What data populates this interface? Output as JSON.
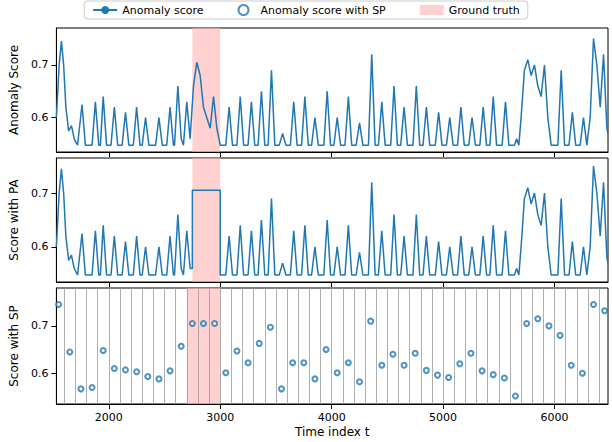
{
  "chart_data": [
    {
      "type": "line",
      "ylabel": "Anomaly Score",
      "legend": "top",
      "grid": false,
      "tick_labels": "y",
      "xlim": [
        1530,
        6480
      ],
      "xticks": [
        2000,
        3000,
        4000,
        5000,
        6000
      ],
      "ylim": [
        0.535,
        0.77
      ],
      "yticks": [
        0.6,
        0.7
      ],
      "series": [
        {
          "name": "Anomaly score",
          "color": "#1f77b4",
          "line_style": "solid",
          "x": [
            1530,
            1555,
            1575,
            1595,
            1615,
            1640,
            1665,
            1690,
            1720,
            1760,
            1790,
            1850,
            1880,
            1910,
            1925,
            1950,
            1980,
            2020,
            2050,
            2080,
            2120,
            2150,
            2180,
            2220,
            2250,
            2280,
            2300,
            2330,
            2360,
            2420,
            2450,
            2480,
            2520,
            2550,
            2580,
            2590,
            2620,
            2650,
            2670,
            2700,
            2730,
            2760,
            2790,
            2820,
            2850,
            2880,
            2910,
            2940,
            2970,
            3000,
            3050,
            3080,
            3110,
            3150,
            3180,
            3210,
            3250,
            3280,
            3310,
            3340,
            3370,
            3400,
            3430,
            3460,
            3490,
            3530,
            3560,
            3590,
            3630,
            3660,
            3690,
            3730,
            3760,
            3790,
            3820,
            3850,
            3880,
            3930,
            3960,
            3990,
            4020,
            4050,
            4080,
            4120,
            4150,
            4180,
            4220,
            4250,
            4280,
            4330,
            4360,
            4390,
            4420,
            4450,
            4480,
            4530,
            4560,
            4590,
            4620,
            4650,
            4680,
            4730,
            4760,
            4790,
            4820,
            4850,
            4880,
            4930,
            4960,
            4990,
            5030,
            5060,
            5090,
            5130,
            5160,
            5190,
            5230,
            5260,
            5290,
            5330,
            5360,
            5390,
            5420,
            5450,
            5480,
            5530,
            5560,
            5590,
            5640,
            5660,
            5680,
            5700,
            5730,
            5760,
            5790,
            5820,
            5850,
            5880,
            5910,
            5940,
            5970,
            6030,
            6060,
            6090,
            6130,
            6160,
            6190,
            6230,
            6260,
            6290,
            6320,
            6350,
            6380,
            6410,
            6440,
            6470,
            6480
          ],
          "values": [
            0.6,
            0.7,
            0.745,
            0.7,
            0.62,
            0.575,
            0.585,
            0.56,
            0.548,
            0.625,
            0.548,
            0.548,
            0.63,
            0.548,
            0.548,
            0.64,
            0.548,
            0.548,
            0.62,
            0.548,
            0.548,
            0.61,
            0.548,
            0.548,
            0.62,
            0.548,
            0.548,
            0.6,
            0.548,
            0.548,
            0.6,
            0.548,
            0.548,
            0.62,
            0.548,
            0.548,
            0.66,
            0.56,
            0.548,
            0.63,
            0.56,
            0.66,
            0.705,
            0.68,
            0.62,
            0.6,
            0.58,
            0.64,
            0.58,
            0.548,
            0.548,
            0.62,
            0.548,
            0.548,
            0.64,
            0.548,
            0.548,
            0.63,
            0.548,
            0.548,
            0.65,
            0.548,
            0.548,
            0.69,
            0.548,
            0.548,
            0.57,
            0.548,
            0.548,
            0.63,
            0.548,
            0.548,
            0.64,
            0.548,
            0.548,
            0.6,
            0.548,
            0.548,
            0.65,
            0.548,
            0.548,
            0.6,
            0.548,
            0.548,
            0.64,
            0.548,
            0.548,
            0.59,
            0.548,
            0.548,
            0.72,
            0.548,
            0.548,
            0.63,
            0.548,
            0.548,
            0.66,
            0.548,
            0.548,
            0.62,
            0.548,
            0.548,
            0.66,
            0.548,
            0.548,
            0.62,
            0.548,
            0.548,
            0.61,
            0.548,
            0.548,
            0.6,
            0.548,
            0.548,
            0.62,
            0.548,
            0.548,
            0.6,
            0.548,
            0.548,
            0.62,
            0.548,
            0.548,
            0.64,
            0.548,
            0.548,
            0.63,
            0.548,
            0.548,
            0.56,
            0.548,
            0.6,
            0.69,
            0.71,
            0.68,
            0.7,
            0.66,
            0.64,
            0.7,
            0.6,
            0.548,
            0.548,
            0.69,
            0.548,
            0.548,
            0.61,
            0.548,
            0.548,
            0.6,
            0.548,
            0.6,
            0.75,
            0.7,
            0.62,
            0.72,
            0.58,
            0.57
          ]
        },
        {
          "name": "Ground truth",
          "type": "span",
          "color": "#ffb0b0",
          "x": [
            2750,
            3000
          ]
        }
      ]
    },
    {
      "type": "line",
      "ylabel": "Score with PA",
      "grid": false,
      "tick_labels": "y",
      "xlim": [
        1530,
        6480
      ],
      "xticks": [
        2000,
        3000,
        4000,
        5000,
        6000
      ],
      "ylim": [
        0.535,
        0.765
      ],
      "yticks": [
        0.6,
        0.7
      ],
      "series": [
        {
          "name": "Anomaly score",
          "color": "#1f77b4",
          "line_style": "solid",
          "x": [
            1530,
            1555,
            1575,
            1595,
            1615,
            1640,
            1665,
            1690,
            1720,
            1760,
            1790,
            1850,
            1880,
            1910,
            1925,
            1950,
            1980,
            2020,
            2050,
            2080,
            2120,
            2150,
            2180,
            2220,
            2250,
            2280,
            2300,
            2330,
            2360,
            2420,
            2450,
            2480,
            2520,
            2550,
            2580,
            2590,
            2620,
            2650,
            2670,
            2700,
            2730,
            2750,
            2750,
            3000,
            3000,
            3050,
            3080,
            3110,
            3150,
            3180,
            3210,
            3250,
            3280,
            3310,
            3340,
            3370,
            3400,
            3430,
            3460,
            3490,
            3530,
            3560,
            3590,
            3630,
            3660,
            3690,
            3730,
            3760,
            3790,
            3820,
            3850,
            3880,
            3930,
            3960,
            3990,
            4020,
            4050,
            4080,
            4120,
            4150,
            4180,
            4220,
            4250,
            4280,
            4330,
            4360,
            4390,
            4420,
            4450,
            4480,
            4530,
            4560,
            4590,
            4620,
            4650,
            4680,
            4730,
            4760,
            4790,
            4820,
            4850,
            4880,
            4930,
            4960,
            4990,
            5030,
            5060,
            5090,
            5130,
            5160,
            5190,
            5230,
            5260,
            5290,
            5330,
            5360,
            5390,
            5420,
            5450,
            5480,
            5530,
            5560,
            5590,
            5640,
            5660,
            5680,
            5700,
            5730,
            5760,
            5790,
            5820,
            5850,
            5880,
            5910,
            5940,
            5970,
            6030,
            6060,
            6090,
            6130,
            6160,
            6190,
            6230,
            6260,
            6290,
            6320,
            6350,
            6380,
            6410,
            6440,
            6470,
            6480
          ],
          "values": [
            0.6,
            0.7,
            0.745,
            0.7,
            0.62,
            0.575,
            0.585,
            0.56,
            0.548,
            0.625,
            0.548,
            0.548,
            0.63,
            0.548,
            0.548,
            0.64,
            0.548,
            0.548,
            0.62,
            0.548,
            0.548,
            0.61,
            0.548,
            0.548,
            0.62,
            0.548,
            0.548,
            0.6,
            0.548,
            0.548,
            0.6,
            0.548,
            0.548,
            0.62,
            0.548,
            0.548,
            0.66,
            0.56,
            0.548,
            0.63,
            0.56,
            0.56,
            0.705,
            0.705,
            0.548,
            0.548,
            0.62,
            0.548,
            0.548,
            0.64,
            0.548,
            0.548,
            0.63,
            0.548,
            0.548,
            0.65,
            0.548,
            0.548,
            0.69,
            0.548,
            0.548,
            0.57,
            0.548,
            0.548,
            0.63,
            0.548,
            0.548,
            0.64,
            0.548,
            0.548,
            0.6,
            0.548,
            0.548,
            0.65,
            0.548,
            0.548,
            0.6,
            0.548,
            0.548,
            0.64,
            0.548,
            0.548,
            0.59,
            0.548,
            0.548,
            0.72,
            0.548,
            0.548,
            0.63,
            0.548,
            0.548,
            0.66,
            0.548,
            0.548,
            0.62,
            0.548,
            0.548,
            0.66,
            0.548,
            0.548,
            0.62,
            0.548,
            0.548,
            0.61,
            0.548,
            0.548,
            0.6,
            0.548,
            0.548,
            0.62,
            0.548,
            0.548,
            0.6,
            0.548,
            0.548,
            0.62,
            0.548,
            0.548,
            0.64,
            0.548,
            0.548,
            0.63,
            0.548,
            0.548,
            0.56,
            0.548,
            0.6,
            0.69,
            0.71,
            0.68,
            0.7,
            0.66,
            0.64,
            0.7,
            0.6,
            0.548,
            0.548,
            0.69,
            0.548,
            0.548,
            0.61,
            0.548,
            0.548,
            0.6,
            0.548,
            0.6,
            0.75,
            0.7,
            0.62,
            0.72,
            0.58,
            0.57
          ]
        },
        {
          "name": "Ground truth",
          "type": "span",
          "color": "#ffb0b0",
          "x": [
            2750,
            3000
          ]
        }
      ]
    },
    {
      "type": "scatter",
      "ylabel": "Score with SP",
      "xlabel": "Time index t",
      "grid": false,
      "xlim": [
        1530,
        6480
      ],
      "xticks": [
        2000,
        3000,
        4000,
        5000,
        6000
      ],
      "ylim": [
        0.535,
        0.78
      ],
      "yticks": [
        0.6,
        0.7
      ],
      "segment_boundaries": [
        1600,
        1700,
        1800,
        1900,
        2000,
        2100,
        2200,
        2300,
        2400,
        2500,
        2600,
        2700,
        2800,
        2900,
        3000,
        3100,
        3200,
        3300,
        3400,
        3500,
        3600,
        3700,
        3800,
        3900,
        4000,
        4100,
        4200,
        4300,
        4400,
        4500,
        4600,
        4700,
        4800,
        4900,
        5000,
        5100,
        5200,
        5300,
        5400,
        5500,
        5600,
        5700,
        5800,
        5900,
        6000,
        6100,
        6200,
        6300,
        6400
      ],
      "series": [
        {
          "name": "Anomaly score with SP",
          "color": "#1f77b4",
          "marker": "hollow circle",
          "x": [
            1550,
            1650,
            1750,
            1850,
            1950,
            2050,
            2150,
            2250,
            2350,
            2450,
            2550,
            2650,
            2750,
            2850,
            2950,
            3050,
            3150,
            3250,
            3350,
            3450,
            3550,
            3650,
            3750,
            3850,
            3950,
            4050,
            4150,
            4250,
            4350,
            4450,
            4550,
            4650,
            4750,
            4850,
            4950,
            5050,
            5150,
            5250,
            5350,
            5450,
            5550,
            5650,
            5750,
            5850,
            5950,
            6050,
            6150,
            6250,
            6350,
            6450
          ],
          "values": [
            0.745,
            0.645,
            0.567,
            0.57,
            0.648,
            0.61,
            0.607,
            0.603,
            0.593,
            0.588,
            0.605,
            0.657,
            0.705,
            0.705,
            0.705,
            0.601,
            0.647,
            0.622,
            0.663,
            0.697,
            0.567,
            0.622,
            0.622,
            0.588,
            0.65,
            0.601,
            0.622,
            0.582,
            0.71,
            0.617,
            0.64,
            0.617,
            0.642,
            0.606,
            0.596,
            0.591,
            0.62,
            0.642,
            0.605,
            0.597,
            0.59,
            0.552,
            0.705,
            0.715,
            0.7,
            0.68,
            0.617,
            0.6,
            0.745,
            0.732
          ]
        },
        {
          "name": "Ground truth",
          "type": "span",
          "color": "#ffb0b0",
          "x": [
            2700,
            3000
          ]
        }
      ]
    }
  ]
}
